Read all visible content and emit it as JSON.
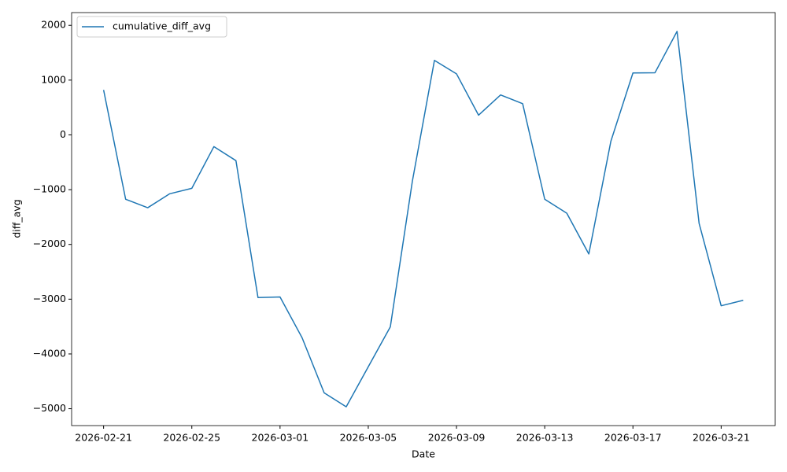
{
  "chart_data": {
    "type": "line",
    "xlabel": "Date",
    "ylabel": "diff_avg",
    "x": [
      "2026-02-21",
      "2026-02-22",
      "2026-02-23",
      "2026-02-24",
      "2026-02-25",
      "2026-02-26",
      "2026-02-27",
      "2026-02-28",
      "2026-03-01",
      "2026-03-02",
      "2026-03-03",
      "2026-03-04",
      "2026-03-05",
      "2026-03-06",
      "2026-03-07",
      "2026-03-08",
      "2026-03-09",
      "2026-03-10",
      "2026-03-11",
      "2026-03-12",
      "2026-03-13",
      "2026-03-14",
      "2026-03-15",
      "2026-03-16",
      "2026-03-17",
      "2026-03-18",
      "2026-03-19",
      "2026-03-20",
      "2026-03-21",
      "2026-03-22"
    ],
    "series": [
      {
        "name": "cumulative_diff_avg",
        "color": "#1f77b4",
        "values": [
          820,
          -1175,
          -1330,
          -1075,
          -975,
          -215,
          -470,
          -2970,
          -2960,
          -3705,
          -4710,
          -4965,
          -4235,
          -3505,
          -845,
          1360,
          1115,
          360,
          730,
          570,
          -1175,
          -1430,
          -2175,
          -115,
          1130,
          1135,
          1890,
          -1615,
          -3120,
          -3020
        ]
      }
    ],
    "xlim": [
      "2026-02-19T13:12",
      "2026-03-23T10:48"
    ],
    "xticks": [
      "2026-02-21",
      "2026-02-25",
      "2026-03-01",
      "2026-03-05",
      "2026-03-09",
      "2026-03-13",
      "2026-03-17",
      "2026-03-21"
    ],
    "ylim": [
      -5308,
      2233
    ],
    "yticks": [
      {
        "value": -5000,
        "label": "−5000"
      },
      {
        "value": -4000,
        "label": "−4000"
      },
      {
        "value": -3000,
        "label": "−3000"
      },
      {
        "value": -2000,
        "label": "−2000"
      },
      {
        "value": -1000,
        "label": "−1000"
      },
      0,
      1000,
      2000
    ],
    "legend": "upper left",
    "grid": false
  }
}
